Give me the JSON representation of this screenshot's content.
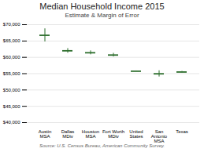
{
  "chart_data": {
    "type": "errorbar",
    "title": "Median Household Income 2015",
    "subtitle": "Estimate & Margin of Error",
    "source": "Source: U.S. Census Bureau, American Community Survey.",
    "categories": [
      "Austin\nMSA",
      "Dallas\nMDiv",
      "Houston\nMSA",
      "Fort Worth\nMDiv",
      "United\nStates",
      "San\nAntonio\nMSA",
      "Texas"
    ],
    "values": [
      66750,
      62000,
      61400,
      60700,
      55750,
      54950,
      55500
    ],
    "margins": [
      2000,
      700,
      600,
      550,
      100,
      950,
      200
    ],
    "color": "#2d6e2d",
    "ylim": [
      40000,
      70000
    ],
    "yticks": [
      {
        "value": 40000,
        "label": "$40,000"
      },
      {
        "value": 45000,
        "label": "$45,000"
      },
      {
        "value": 50000,
        "label": "$50,000"
      },
      {
        "value": 55000,
        "label": "$55,000"
      },
      {
        "value": 60000,
        "label": "$60,000"
      },
      {
        "value": 65000,
        "label": "$65,000"
      },
      {
        "value": 70000,
        "label": "$70,000"
      }
    ],
    "grid": true
  }
}
